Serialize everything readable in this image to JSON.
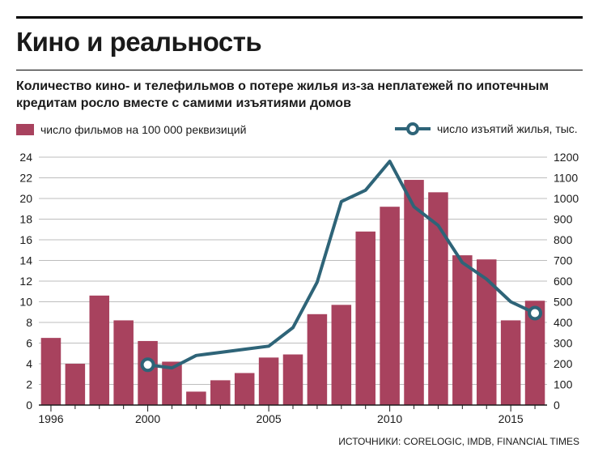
{
  "page": {
    "title": "Кино и реальность",
    "subtitle": "Количество кино- и телефильмов о потере жилья из-за неплатежей по ипотечным кредитам росло вместе с самими изъятиями домов",
    "source": "ИСТОЧНИКИ: CORELOGIC, IMDB, FINANCIAL TIMES"
  },
  "colors": {
    "bar": "#a8425e",
    "line": "#2e6478",
    "grid": "#bdbdbd",
    "axis": "#1a1a1a"
  },
  "chart_data": {
    "type": "bar",
    "title": "Кино и реальность",
    "x": [
      1996,
      1997,
      1998,
      1999,
      2000,
      2001,
      2002,
      2003,
      2004,
      2005,
      2006,
      2007,
      2008,
      2009,
      2010,
      2011,
      2012,
      2013,
      2014,
      2015,
      2016
    ],
    "x_tick_labels": [
      "1996",
      "2000",
      "2005",
      "2010",
      "2015"
    ],
    "x_tick_values": [
      1996,
      2000,
      2005,
      2010,
      2015
    ],
    "left_axis": {
      "ylim": [
        0,
        24
      ],
      "ticks": [
        "0",
        "2",
        "4",
        "6",
        "8",
        "10",
        "12",
        "14",
        "16",
        "18",
        "20",
        "22",
        "24"
      ]
    },
    "right_axis": {
      "ylim": [
        0,
        1200
      ],
      "ticks": [
        "0",
        "100",
        "200",
        "300",
        "400",
        "500",
        "600",
        "700",
        "800",
        "900",
        "1000",
        "1100",
        "1200"
      ]
    },
    "grid": true,
    "legend_placement": "top",
    "series": [
      {
        "name": "число фильмов на 100 000 реквизиций",
        "type": "bar",
        "axis": "left",
        "values": [
          6.5,
          4.0,
          10.6,
          8.2,
          6.2,
          4.2,
          1.3,
          2.4,
          3.1,
          4.6,
          4.9,
          8.8,
          9.7,
          16.8,
          19.2,
          21.8,
          20.6,
          14.5,
          14.1,
          8.2,
          10.1
        ]
      },
      {
        "name": "число изъятий жилья, тыс.",
        "type": "line",
        "axis": "right",
        "x": [
          2000,
          2001,
          2002,
          2003,
          2004,
          2005,
          2006,
          2007,
          2008,
          2009,
          2010,
          2011,
          2012,
          2013,
          2014,
          2015,
          2016
        ],
        "values": [
          195,
          180,
          240,
          255,
          270,
          285,
          375,
          595,
          985,
          1040,
          1180,
          960,
          870,
          690,
          610,
          500,
          445
        ],
        "markers_at": [
          2000,
          2016
        ]
      }
    ]
  }
}
